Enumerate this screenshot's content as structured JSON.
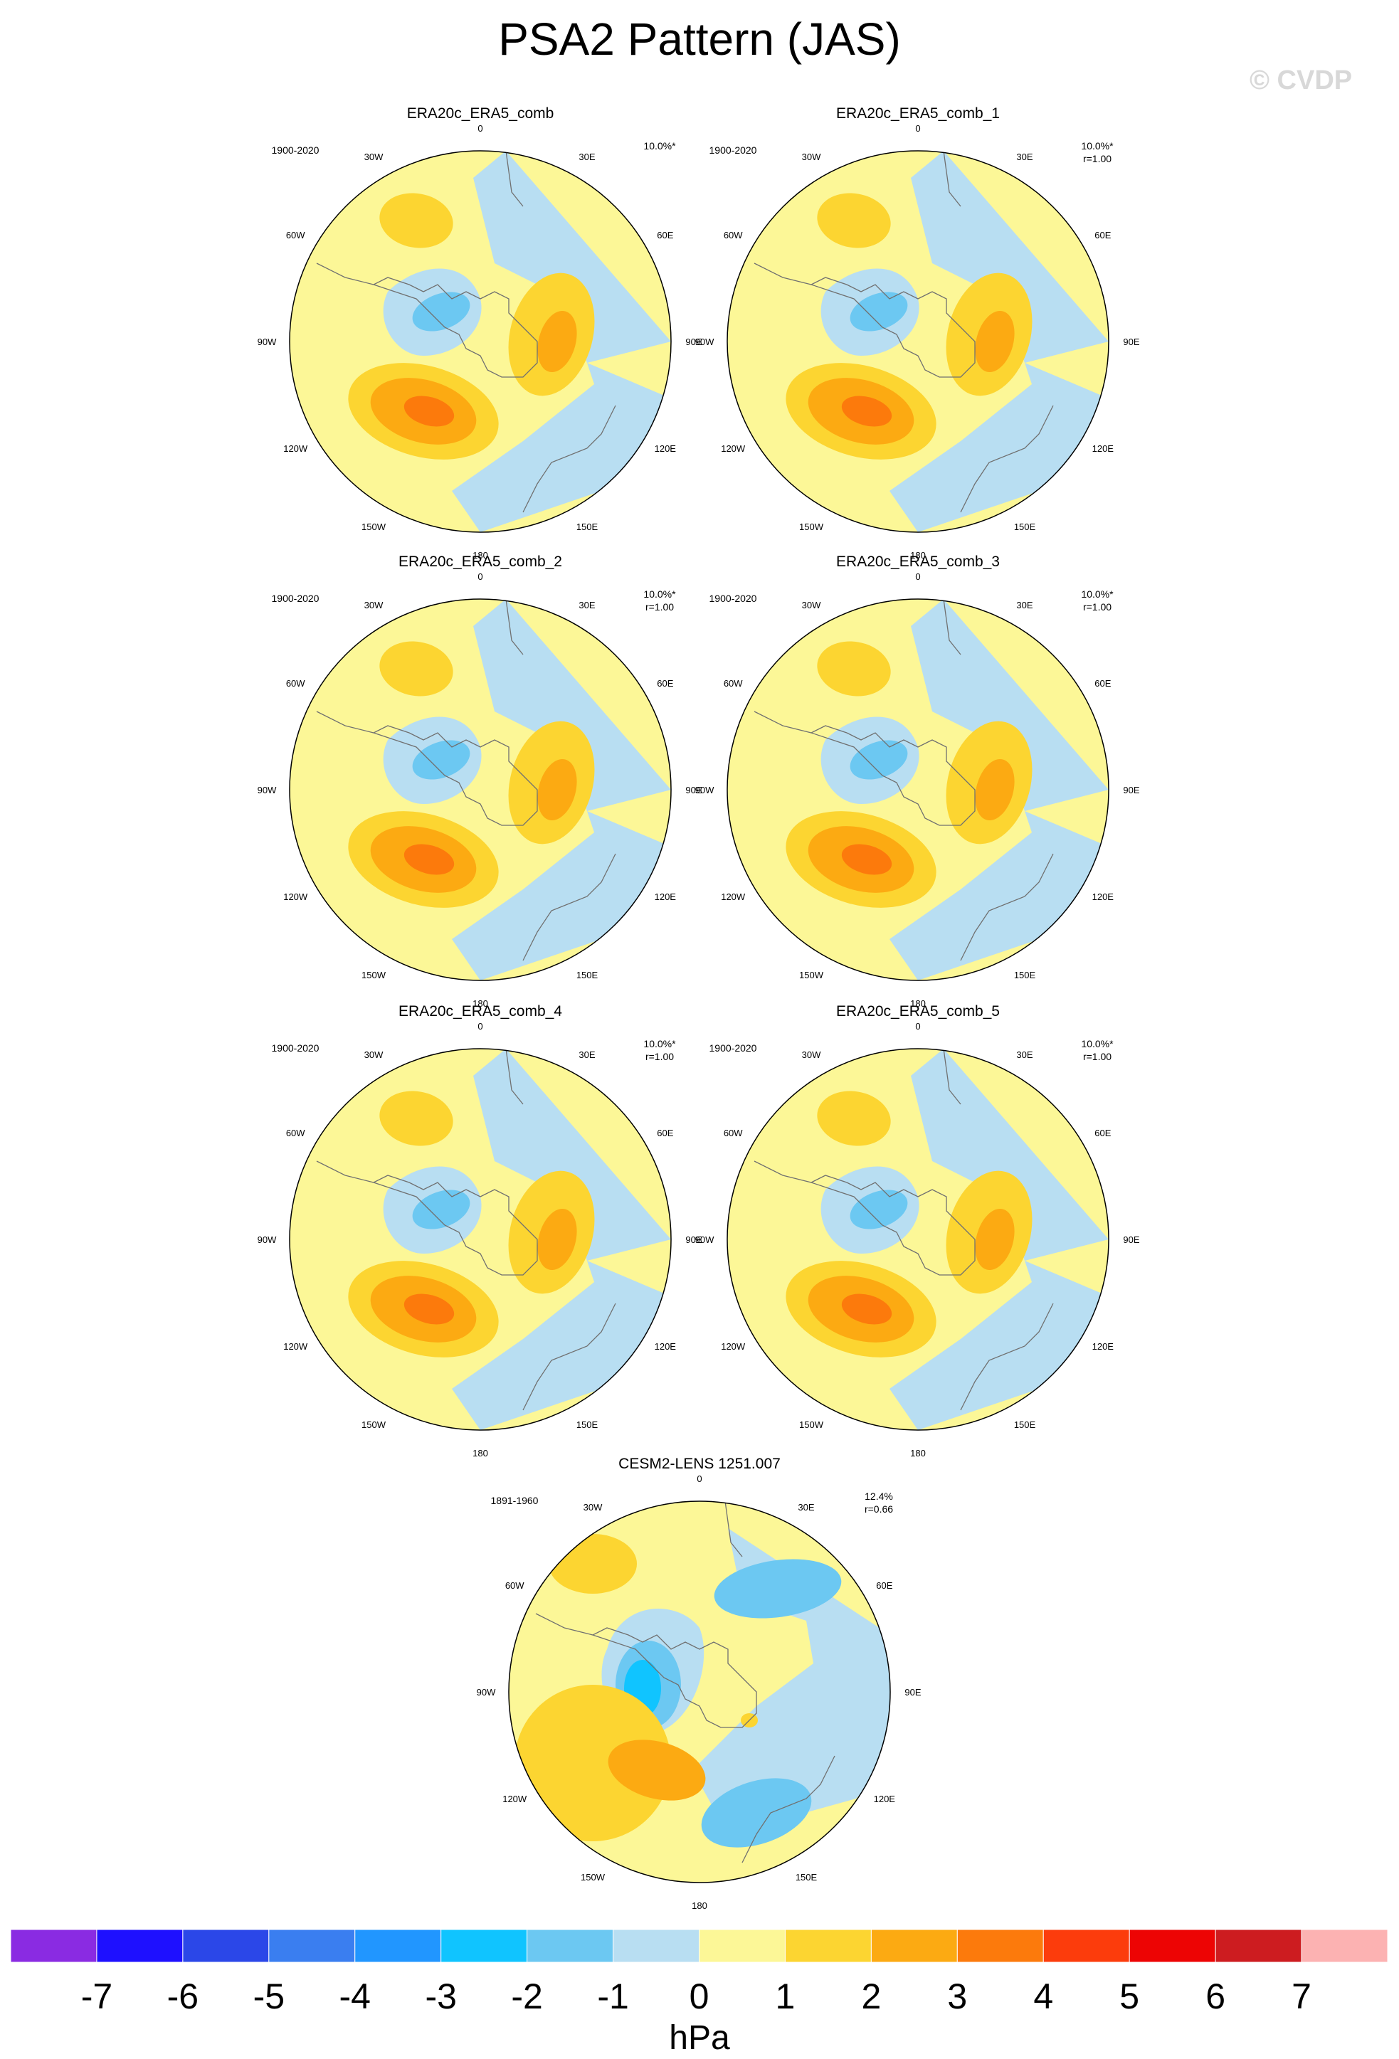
{
  "title": "PSA2 Pattern (JAS)",
  "watermark": "© CVDP",
  "lon_labels": [
    "0",
    "30E",
    "60E",
    "90E",
    "120E",
    "150E",
    "180",
    "150W",
    "120W",
    "90W",
    "60W",
    "30W"
  ],
  "panels": [
    {
      "name": "ERA20c_ERA5_comb",
      "period": "1900-2020",
      "pct": "10.0%*",
      "corr": "",
      "variant": "obs"
    },
    {
      "name": "ERA20c_ERA5_comb_1",
      "period": "1900-2020",
      "pct": "10.0%*",
      "corr": "r=1.00",
      "variant": "obs"
    },
    {
      "name": "ERA20c_ERA5_comb_2",
      "period": "1900-2020",
      "pct": "10.0%*",
      "corr": "r=1.00",
      "variant": "obs"
    },
    {
      "name": "ERA20c_ERA5_comb_3",
      "period": "1900-2020",
      "pct": "10.0%*",
      "corr": "r=1.00",
      "variant": "obs"
    },
    {
      "name": "ERA20c_ERA5_comb_4",
      "period": "1900-2020",
      "pct": "10.0%*",
      "corr": "r=1.00",
      "variant": "obs"
    },
    {
      "name": "ERA20c_ERA5_comb_5",
      "period": "1900-2020",
      "pct": "10.0%*",
      "corr": "r=1.00",
      "variant": "obs"
    },
    {
      "name": "CESM2-LENS 1251.007",
      "period": "1891-1960",
      "pct": "12.4%",
      "corr": "r=0.66",
      "variant": "model"
    }
  ],
  "colorbar": {
    "units": "hPa",
    "labels": [
      "-7",
      "-6",
      "-5",
      "-4",
      "-3",
      "-2",
      "-1",
      "0",
      "1",
      "2",
      "3",
      "4",
      "5",
      "6",
      "7"
    ],
    "colors": [
      "#8a2be2",
      "#1e10ff",
      "#2b47e8",
      "#3a7ef0",
      "#2196ff",
      "#10c4ff",
      "#6cc8f2",
      "#b8def2",
      "#fcf797",
      "#fcd531",
      "#fcaa12",
      "#fc7a0c",
      "#fc3c0c",
      "#ed0404",
      "#cd1c20",
      "#fcb2b2"
    ]
  }
}
